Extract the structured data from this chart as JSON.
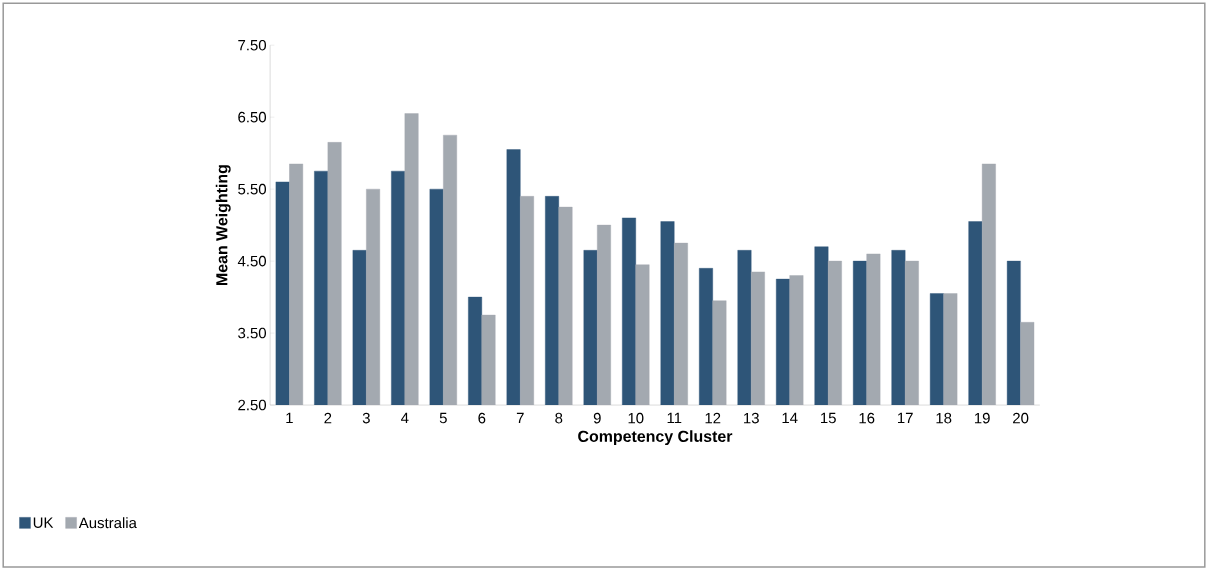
{
  "chart_data": {
    "type": "bar",
    "xlabel": "Competency Cluster",
    "ylabel": "Mean Weighting",
    "categories": [
      "1",
      "2",
      "3",
      "4",
      "5",
      "6",
      "7",
      "8",
      "9",
      "10",
      "11",
      "12",
      "13",
      "14",
      "15",
      "16",
      "17",
      "18",
      "19",
      "20"
    ],
    "series": [
      {
        "name": "UK",
        "color": "#2e5578",
        "values": [
          5.6,
          5.75,
          4.65,
          5.75,
          5.5,
          4.0,
          6.05,
          5.4,
          4.65,
          5.1,
          5.05,
          4.4,
          4.65,
          4.25,
          4.7,
          4.5,
          4.65,
          4.05,
          5.05,
          4.5
        ]
      },
      {
        "name": "Australia",
        "color": "#a3a9b0",
        "values": [
          5.85,
          6.15,
          5.5,
          6.55,
          6.25,
          3.75,
          5.4,
          5.25,
          5.0,
          4.45,
          4.75,
          3.95,
          4.35,
          4.3,
          4.5,
          4.6,
          4.5,
          4.05,
          5.85,
          3.65
        ]
      }
    ],
    "ylim": [
      2.5,
      7.5
    ],
    "yticks": [
      {
        "value": 2.5,
        "label": "2.50"
      },
      {
        "value": 3.5,
        "label": "3.50"
      },
      {
        "value": 4.5,
        "label": "4.50"
      },
      {
        "value": 5.5,
        "label": "5.50"
      },
      {
        "value": 6.5,
        "label": "6.50"
      },
      {
        "value": 7.5,
        "label": "7.50"
      }
    ],
    "legend": "bottom left"
  }
}
